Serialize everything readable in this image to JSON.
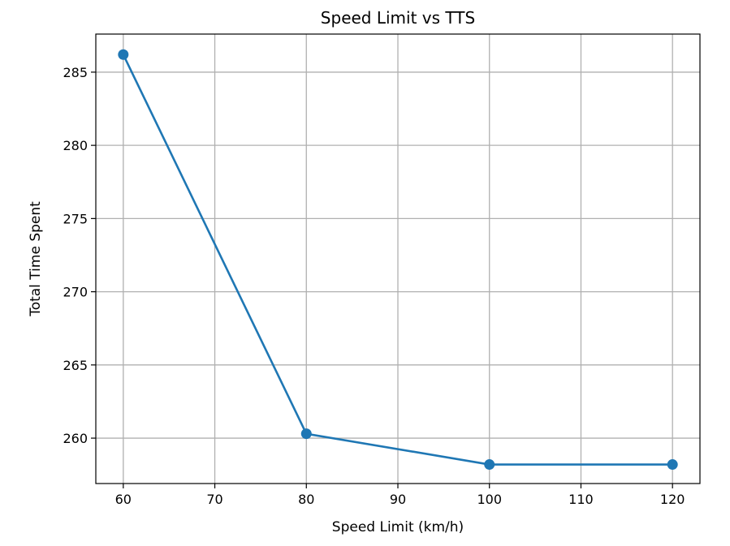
{
  "chart_data": {
    "type": "line",
    "title": "Speed Limit vs TTS",
    "xlabel": "Speed Limit (km/h)",
    "ylabel": "Total Time Spent",
    "x": [
      60,
      80,
      100,
      120
    ],
    "series": [
      {
        "values": [
          286.2,
          260.3,
          258.2,
          258.2
        ],
        "color": "#1f77b4",
        "marker": "circle"
      }
    ],
    "xlim": [
      57,
      123
    ],
    "ylim": [
      256.9,
      287.6
    ],
    "xticks": [
      60,
      70,
      80,
      90,
      100,
      110,
      120
    ],
    "yticks": [
      260,
      265,
      270,
      275,
      280,
      285
    ],
    "grid": true,
    "grid_color": "#b0b0b0"
  }
}
